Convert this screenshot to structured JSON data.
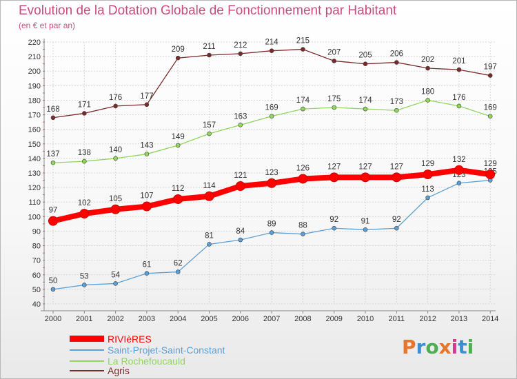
{
  "header": {
    "title": "Evolution de la Dotation Globale de Fonctionnement par Habitant",
    "subtitle": "(en € et par an)"
  },
  "logo": {
    "text": "Proxiti",
    "colors": [
      "#e8752a",
      "#3d8fd1",
      "#4caf50",
      "#e8752a",
      "#d63a8f",
      "#3d8fd1",
      "#4caf50"
    ]
  },
  "chart_data": {
    "type": "line",
    "title": "Evolution de la Dotation Globale de Fonctionnement par Habitant",
    "subtitle": "(en € et par an)",
    "xlabel": "",
    "ylabel": "",
    "x": [
      "2000",
      "2001",
      "2002",
      "2003",
      "2004",
      "2005",
      "2006",
      "2007",
      "2008",
      "2009",
      "2010",
      "2011",
      "2012",
      "2013",
      "2014"
    ],
    "ylim": [
      40,
      220
    ],
    "yticks": [
      40,
      50,
      60,
      70,
      80,
      90,
      100,
      110,
      120,
      130,
      140,
      150,
      160,
      170,
      180,
      190,
      200,
      210,
      220
    ],
    "grid": true,
    "legend_position": "bottom-left",
    "series": [
      {
        "name": "RIVIèRES",
        "color": "#ff0000",
        "bold": true,
        "values": [
          97,
          102,
          105,
          107,
          112,
          114,
          121,
          123,
          126,
          127,
          127,
          127,
          129,
          132,
          129
        ]
      },
      {
        "name": "Saint-Projet-Saint-Constant",
        "color": "#5b9fd4",
        "bold": false,
        "values": [
          50,
          53,
          54,
          61,
          62,
          81,
          84,
          89,
          88,
          92,
          91,
          92,
          113,
          123,
          125
        ]
      },
      {
        "name": "La Rochefoucauld",
        "color": "#8fd65a",
        "bold": false,
        "values": [
          137,
          138,
          140,
          143,
          149,
          157,
          163,
          169,
          174,
          175,
          174,
          173,
          180,
          176,
          169
        ]
      },
      {
        "name": "Agris",
        "color": "#7a2a2a",
        "bold": false,
        "values": [
          168,
          171,
          176,
          177,
          209,
          211,
          212,
          214,
          215,
          207,
          205,
          206,
          202,
          201,
          197
        ]
      }
    ]
  }
}
